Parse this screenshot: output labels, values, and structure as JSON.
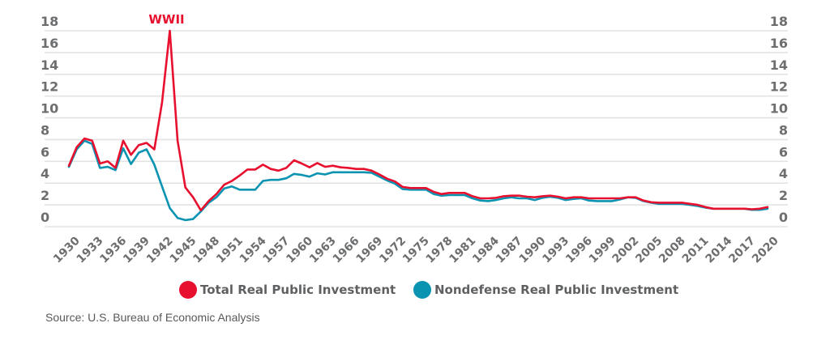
{
  "chart_data": {
    "type": "line",
    "title": "",
    "xlabel": "",
    "ylabel": "",
    "ylim": [
      0,
      18
    ],
    "yticks": [
      0,
      2,
      4,
      6,
      8,
      10,
      12,
      14,
      16,
      18
    ],
    "y_axis_sides": "left-and-right",
    "grid": true,
    "x": [
      1930,
      1931,
      1932,
      1933,
      1934,
      1935,
      1936,
      1937,
      1938,
      1939,
      1940,
      1941,
      1942,
      1943,
      1944,
      1945,
      1946,
      1947,
      1948,
      1949,
      1950,
      1951,
      1952,
      1953,
      1954,
      1955,
      1956,
      1957,
      1958,
      1959,
      1960,
      1961,
      1962,
      1963,
      1964,
      1965,
      1966,
      1967,
      1968,
      1969,
      1970,
      1971,
      1972,
      1973,
      1974,
      1975,
      1976,
      1977,
      1978,
      1979,
      1980,
      1981,
      1982,
      1983,
      1984,
      1985,
      1986,
      1987,
      1988,
      1989,
      1990,
      1991,
      1992,
      1993,
      1994,
      1995,
      1996,
      1997,
      1998,
      1999,
      2000,
      2001,
      2002,
      2003,
      2004,
      2005,
      2006,
      2007,
      2008,
      2009,
      2010,
      2011,
      2012,
      2013,
      2014,
      2015,
      2016,
      2017,
      2018,
      2019,
      2020
    ],
    "xticks": [
      "1930",
      "1933",
      "1936",
      "1939",
      "1942",
      "1945",
      "1948",
      "1951",
      "1954",
      "1957",
      "1960",
      "1963",
      "1966",
      "1969",
      "1972",
      "1975",
      "1978",
      "1981",
      "1984",
      "1987",
      "1990",
      "1993",
      "1996",
      "1999",
      "2002",
      "2005",
      "2008",
      "2011",
      "2014",
      "2017",
      "2020"
    ],
    "series": [
      {
        "name": "Total Real Public Investment",
        "color": "#E8102F",
        "values": [
          5.6,
          7.3,
          8.1,
          7.9,
          5.8,
          6.0,
          5.4,
          7.9,
          6.6,
          7.5,
          7.7,
          7.1,
          11.4,
          18.0,
          7.9,
          3.6,
          2.7,
          1.5,
          2.35,
          3.0,
          3.85,
          4.2,
          4.7,
          5.25,
          5.25,
          5.7,
          5.3,
          5.15,
          5.4,
          6.1,
          5.8,
          5.45,
          5.85,
          5.5,
          5.6,
          5.45,
          5.4,
          5.3,
          5.3,
          5.15,
          4.8,
          4.4,
          4.15,
          3.65,
          3.55,
          3.55,
          3.55,
          3.2,
          3.0,
          3.1,
          3.1,
          3.1,
          2.8,
          2.6,
          2.6,
          2.65,
          2.8,
          2.85,
          2.85,
          2.75,
          2.7,
          2.8,
          2.85,
          2.75,
          2.6,
          2.7,
          2.7,
          2.6,
          2.6,
          2.6,
          2.6,
          2.6,
          2.7,
          2.7,
          2.4,
          2.25,
          2.2,
          2.2,
          2.2,
          2.2,
          2.1,
          2.0,
          1.8,
          1.65,
          1.65,
          1.65,
          1.65,
          1.65,
          1.6,
          1.65,
          1.8
        ]
      },
      {
        "name": "Nondefense Real Public Investment",
        "color": "#0B93B2",
        "values": [
          5.5,
          7.1,
          7.9,
          7.6,
          5.4,
          5.5,
          5.2,
          7.2,
          5.75,
          6.8,
          7.1,
          5.7,
          3.7,
          1.7,
          0.8,
          0.6,
          0.7,
          1.4,
          2.2,
          2.7,
          3.5,
          3.7,
          3.4,
          3.4,
          3.4,
          4.2,
          4.3,
          4.3,
          4.45,
          4.85,
          4.75,
          4.6,
          4.9,
          4.8,
          5.0,
          5.0,
          5.0,
          5.0,
          5.0,
          4.95,
          4.6,
          4.25,
          3.95,
          3.45,
          3.4,
          3.4,
          3.4,
          3.0,
          2.85,
          2.9,
          2.9,
          2.9,
          2.6,
          2.4,
          2.35,
          2.45,
          2.6,
          2.7,
          2.6,
          2.6,
          2.45,
          2.65,
          2.75,
          2.65,
          2.45,
          2.55,
          2.6,
          2.4,
          2.35,
          2.35,
          2.35,
          2.5,
          2.7,
          2.65,
          2.35,
          2.2,
          2.1,
          2.1,
          2.1,
          2.1,
          2.0,
          1.9,
          1.75,
          1.65,
          1.65,
          1.65,
          1.65,
          1.65,
          1.55,
          1.55,
          1.65
        ]
      }
    ],
    "annotations": [
      {
        "text": "WWII",
        "x": 1943,
        "color": "#E8102F"
      }
    ],
    "legend": {
      "position": "bottom-center",
      "entries": [
        {
          "label": "Total Real Public Investment",
          "color": "#E8102F"
        },
        {
          "label": "Nondefense Real Public Investment",
          "color": "#0B93B2"
        }
      ]
    },
    "source": "Source: U.S. Bureau of Economic Analysis"
  },
  "colors": {
    "grid": "#e3e3e3",
    "tick_text": "#6d6e70",
    "legend_text": "#5f6062",
    "source_text": "#58595b"
  }
}
